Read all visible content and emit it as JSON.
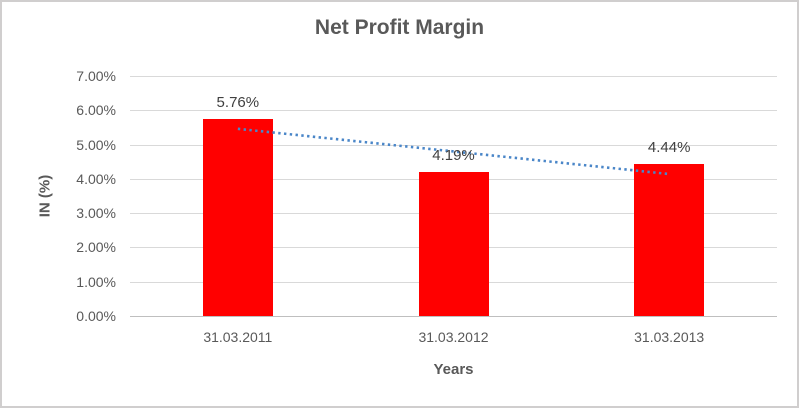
{
  "chart_data": {
    "type": "bar",
    "title": "Net Profit Margin",
    "categories": [
      "31.03.2011",
      "31.03.2012",
      "31.03.2013"
    ],
    "values": [
      5.76,
      4.19,
      4.44
    ],
    "data_labels": [
      "5.76%",
      "4.19%",
      "4.44%"
    ],
    "xlabel": "Years",
    "ylabel": "IN (%)",
    "ylim": [
      0,
      7
    ],
    "ytick_values": [
      0,
      1,
      2,
      3,
      4,
      5,
      6,
      7
    ],
    "ytick_labels": [
      "0.00%",
      "1.00%",
      "2.00%",
      "3.00%",
      "4.00%",
      "5.00%",
      "6.00%",
      "7.00%"
    ],
    "grid": true,
    "legend": "none",
    "bar_color": "#FF0000",
    "trendline": {
      "type": "linear",
      "style": "dotted",
      "color": "#4A86C8",
      "start_value": 5.46,
      "end_value": 4.14
    },
    "colors": {
      "title_text": "#595959",
      "axis_text": "#595959",
      "data_label_text": "#404040",
      "gridline": "#D9D9D9",
      "axis_line": "#BFBFBF",
      "chart_border": "#D0CECE",
      "background": "#FFFFFF"
    }
  }
}
